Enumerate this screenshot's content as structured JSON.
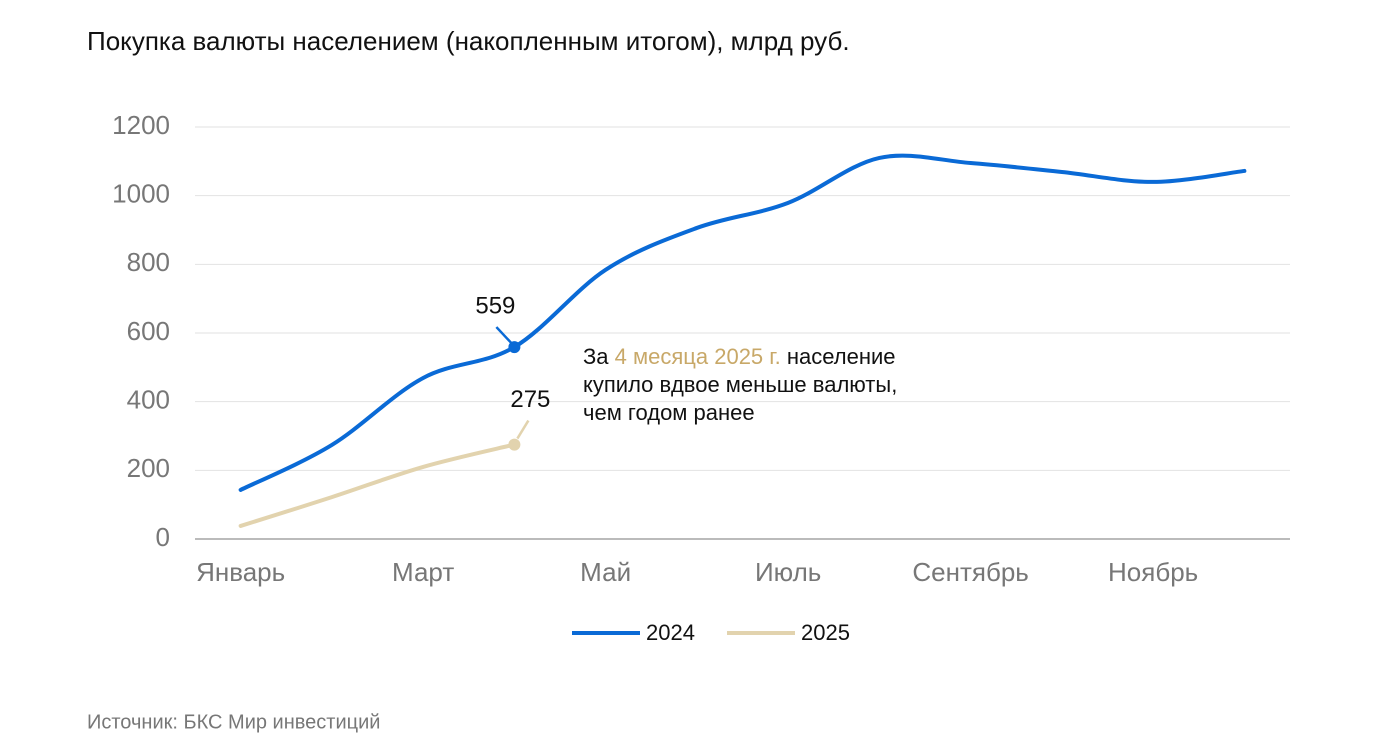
{
  "chart_data": {
    "type": "line",
    "title": "Покупка валюты населением (накопленным итогом), млрд руб.",
    "categories": [
      "Январь",
      null,
      "Март",
      null,
      "Май",
      null,
      "Июль",
      null,
      "Сентябрь",
      null,
      "Ноябрь",
      null
    ],
    "series": [
      {
        "name": "2024",
        "color": "#0a6ad6",
        "values": [
          143,
          274,
          469,
          559,
          784,
          906,
          979,
          1110,
          1095,
          1069,
          1040,
          1072
        ]
      },
      {
        "name": "2025",
        "color": "#e2d3ae",
        "values": [
          38,
          122,
          210,
          275,
          null,
          null,
          null,
          null,
          null,
          null,
          null,
          null
        ]
      }
    ],
    "ylim": [
      0,
      1200
    ],
    "yticks": [
      0,
      200,
      400,
      600,
      800,
      1000,
      1200
    ],
    "grid": true,
    "annotation": [
      "За",
      "4 месяца 2025 г.",
      "население",
      "купило вдвое меньше валюты,",
      "чем годом ранее"
    ],
    "annotation_highlight_color": "#c8a868",
    "source": "Источник: БКС Мир инвестиций"
  }
}
